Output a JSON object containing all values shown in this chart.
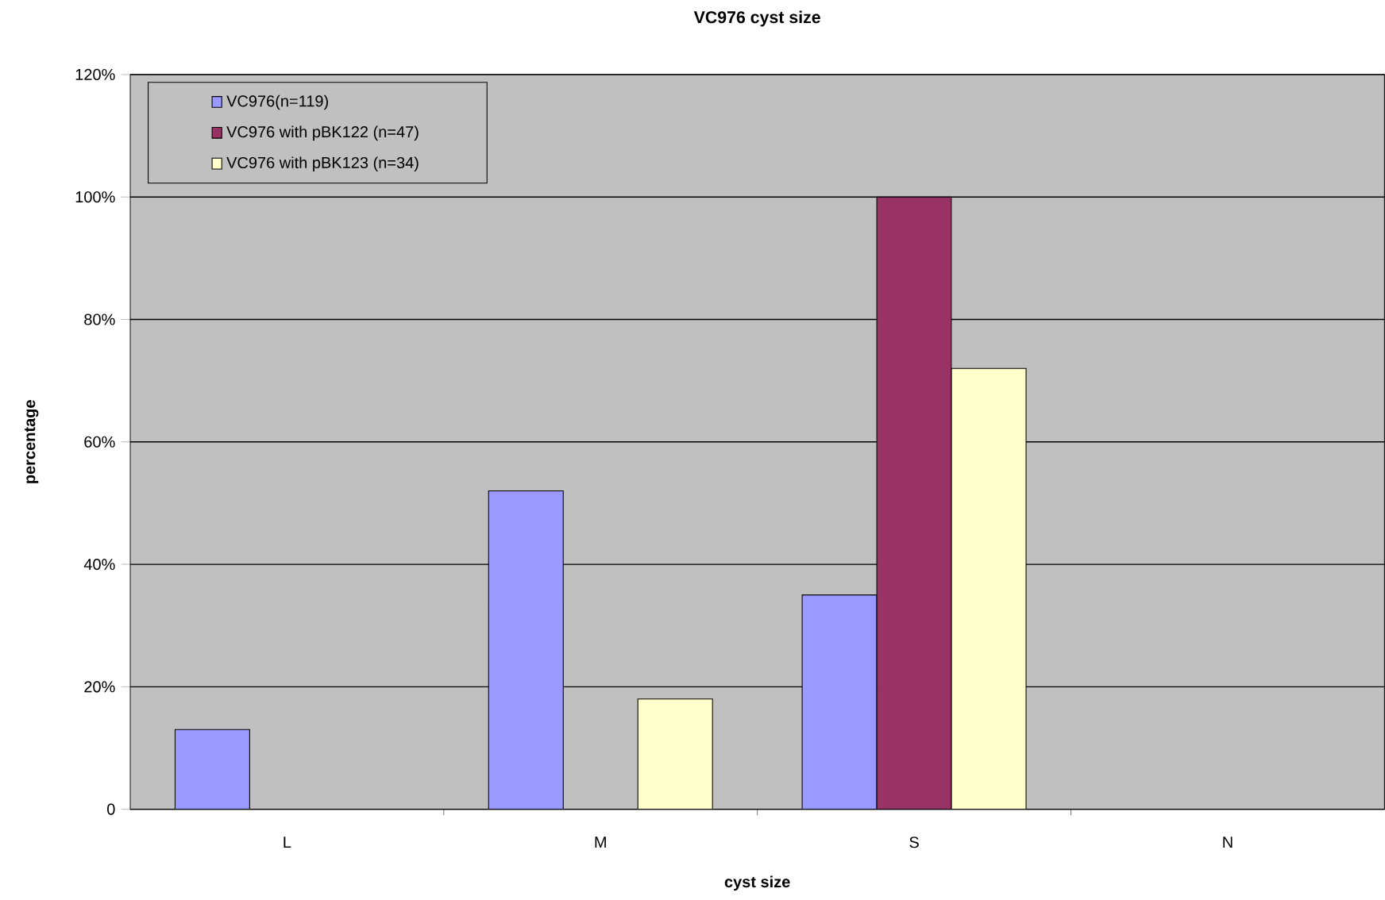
{
  "chart_data": {
    "type": "bar",
    "title": "VC976 cyst size",
    "xlabel": "cyst size",
    "ylabel": "percentage",
    "categories": [
      "L",
      "M",
      "S",
      "N"
    ],
    "series": [
      {
        "name": "VC976(n=119)",
        "color": "#9999ff",
        "values": [
          13,
          52,
          35,
          null
        ]
      },
      {
        "name": "VC976 with pBK122  (n=47)",
        "color": "#993366",
        "values": [
          null,
          null,
          100,
          null
        ]
      },
      {
        "name": "VC976 with pBK123 (n=34)",
        "color": "#ffffcc",
        "values": [
          null,
          18,
          72,
          null
        ]
      }
    ],
    "ylim": [
      0,
      120
    ],
    "yticks": [
      0,
      {
        "value": 20,
        "label": "20%"
      },
      {
        "value": 40,
        "label": "40%"
      },
      {
        "value": 60,
        "label": "60%"
      },
      {
        "value": 80,
        "label": "80%"
      },
      {
        "value": 100,
        "label": "100%"
      },
      {
        "value": 120,
        "label": "120%"
      }
    ],
    "grid": "y",
    "legend": "top left"
  }
}
